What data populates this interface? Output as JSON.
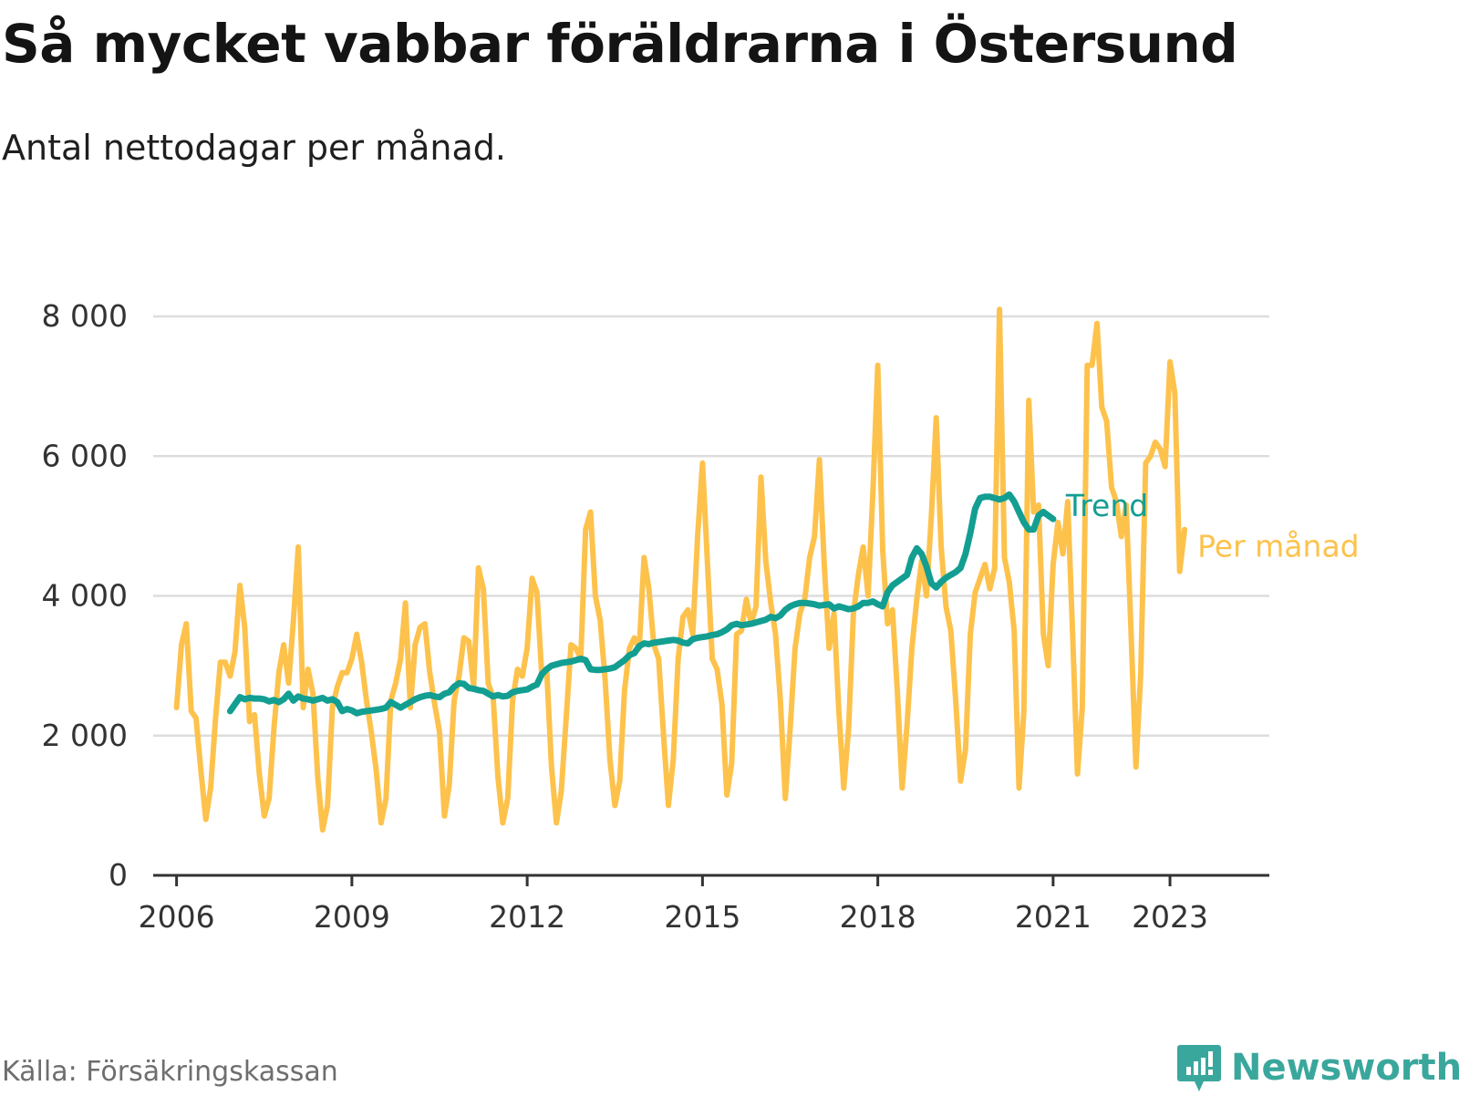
{
  "title": "Så mycket vabbar föräldrarna i Östersund",
  "subtitle": "Antal nettodagar per månad.",
  "source": "Källa: Försäkringskassan",
  "brand": "Newsworthy",
  "colors": {
    "trend": "#139e92",
    "monthly": "#fdc24c",
    "grid": "#dddddd",
    "axis": "#333333",
    "brand": "#3aa79d"
  },
  "chart_data": {
    "type": "line",
    "title": "Så mycket vabbar föräldrarna i Östersund",
    "subtitle": "Antal nettodagar per månad.",
    "xlabel": "",
    "ylabel": "",
    "x_start": 2006.0,
    "x_step_months": 1,
    "xlim": [
      2005.6,
      2024.7
    ],
    "ylim": [
      0,
      8000
    ],
    "grid": true,
    "y_ticks": [
      {
        "value": 0,
        "label": "0"
      },
      {
        "value": 2000,
        "label": "2 000"
      },
      {
        "value": 4000,
        "label": "4 000"
      },
      {
        "value": 6000,
        "label": "6 000"
      },
      {
        "value": 8000,
        "label": "8 000"
      }
    ],
    "x_ticks": [
      {
        "value": 2006,
        "label": "2006"
      },
      {
        "value": 2009,
        "label": "2009"
      },
      {
        "value": 2012,
        "label": "2012"
      },
      {
        "value": 2015,
        "label": "2015"
      },
      {
        "value": 2018,
        "label": "2018"
      },
      {
        "value": 2021,
        "label": "2021"
      },
      {
        "value": 2023,
        "label": "2023"
      }
    ],
    "series": [
      {
        "name": "Per månad",
        "start": 2006.0,
        "values": [
          2400,
          3300,
          3600,
          2350,
          2250,
          1500,
          800,
          1250,
          2250,
          3050,
          3050,
          2850,
          3200,
          4150,
          3550,
          2200,
          2300,
          1450,
          850,
          1100,
          2100,
          2900,
          3300,
          2750,
          3650,
          4700,
          2400,
          2950,
          2600,
          1400,
          650,
          1000,
          2400,
          2700,
          2900,
          2900,
          3100,
          3450,
          3050,
          2500,
          2050,
          1500,
          750,
          1100,
          2500,
          2750,
          3100,
          3900,
          2400,
          3300,
          3550,
          3600,
          2900,
          2450,
          2050,
          850,
          1300,
          2500,
          2850,
          3400,
          3350,
          2700,
          4400,
          4100,
          2750,
          2550,
          1400,
          750,
          1100,
          2500,
          2950,
          2850,
          3250,
          4250,
          4050,
          2850,
          2950,
          1550,
          750,
          1200,
          2250,
          3300,
          3250,
          3100,
          4950,
          5200,
          4000,
          3650,
          2800,
          1650,
          1000,
          1350,
          2650,
          3250,
          3400,
          3250,
          4550,
          4100,
          3300,
          3100,
          2000,
          1000,
          1650,
          3100,
          3700,
          3800,
          3450,
          4850,
          5900,
          4500,
          3100,
          2950,
          2450,
          1150,
          1600,
          3450,
          3500,
          3950,
          3600,
          3850,
          5700,
          4500,
          3900,
          3450,
          2500,
          1100,
          2100,
          3250,
          3750,
          3950,
          4550,
          4850,
          5950,
          4450,
          3250,
          3750,
          2350,
          1250,
          2100,
          3750,
          4300,
          4700,
          4000,
          5500,
          7300,
          4650,
          3600,
          3800,
          2650,
          1250,
          2150,
          3250,
          3950,
          4500,
          4000,
          5150,
          6550,
          4700,
          3850,
          3500,
          2500,
          1350,
          1800,
          3450,
          4050,
          4250,
          4450,
          4100,
          4400,
          8100,
          4550,
          4200,
          3500,
          1250,
          2350,
          6800,
          5200,
          5300,
          3450,
          3000,
          4450,
          5050,
          4600,
          5350,
          3450,
          1450,
          2400,
          7300,
          7300,
          7900,
          6700,
          6500,
          5550,
          5350,
          4850,
          5300,
          3500,
          1550,
          2900,
          5900,
          6000,
          6200,
          6100,
          5850,
          7350,
          6900,
          4350,
          4950
        ]
      },
      {
        "name": "Trend",
        "start": 2006.9167,
        "values": [
          2350,
          2450,
          2550,
          2520,
          2540,
          2530,
          2530,
          2520,
          2490,
          2510,
          2480,
          2520,
          2600,
          2500,
          2560,
          2530,
          2520,
          2500,
          2520,
          2540,
          2500,
          2520,
          2480,
          2350,
          2380,
          2360,
          2320,
          2340,
          2350,
          2360,
          2370,
          2380,
          2400,
          2480,
          2440,
          2400,
          2440,
          2480,
          2520,
          2550,
          2570,
          2580,
          2560,
          2550,
          2600,
          2620,
          2700,
          2750,
          2740,
          2680,
          2670,
          2650,
          2640,
          2600,
          2560,
          2580,
          2560,
          2570,
          2620,
          2640,
          2650,
          2660,
          2700,
          2730,
          2880,
          2950,
          3000,
          3020,
          3040,
          3050,
          3060,
          3080,
          3100,
          3080,
          2950,
          2940,
          2940,
          2950,
          2960,
          2980,
          3030,
          3080,
          3150,
          3180,
          3280,
          3320,
          3310,
          3330,
          3340,
          3350,
          3360,
          3370,
          3360,
          3330,
          3320,
          3380,
          3400,
          3410,
          3420,
          3440,
          3450,
          3480,
          3520,
          3580,
          3600,
          3580,
          3590,
          3600,
          3620,
          3640,
          3660,
          3700,
          3680,
          3720,
          3800,
          3850,
          3880,
          3900,
          3900,
          3890,
          3880,
          3860,
          3870,
          3880,
          3820,
          3850,
          3830,
          3810,
          3820,
          3850,
          3900,
          3900,
          3920,
          3880,
          3850,
          4050,
          4150,
          4200,
          4250,
          4300,
          4550,
          4680,
          4600,
          4420,
          4180,
          4120,
          4200,
          4260,
          4300,
          4340,
          4400,
          4600,
          4900,
          5250,
          5400,
          5420,
          5420,
          5400,
          5380,
          5400,
          5450,
          5350,
          5200,
          5050,
          4950,
          4950,
          5150,
          5200,
          5150,
          5100
        ]
      }
    ],
    "legend": [
      "Trend",
      "Per månad"
    ]
  }
}
